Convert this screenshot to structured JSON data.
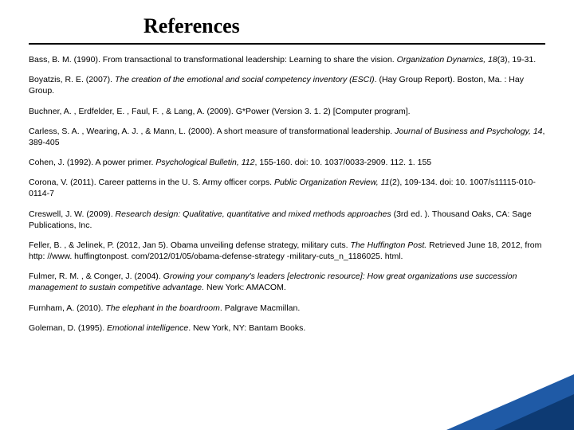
{
  "title": "References",
  "title_fontsize": 26,
  "title_font": "Times New Roman",
  "body_fontsize": 10.5,
  "colors": {
    "text": "#000000",
    "background": "#ffffff",
    "underline": "#000000",
    "corner_light": "#1f5aa6",
    "corner_dark": "#0d3a73"
  },
  "references": [
    {
      "pre": "Bass, B. M. (1990). From transactional to transformational leadership: Learning to share the vision. ",
      "ital": "Organization Dynamics, 18",
      "post": "(3), 19-31."
    },
    {
      "pre": "Boyatzis, R. E. (2007). ",
      "ital": "The creation of the emotional and social competency inventory (ESCI)",
      "post": ". (Hay Group Report). Boston, Ma. : Hay Group."
    },
    {
      "pre": "Buchner, A. , Erdfelder, E. , Faul, F. , & Lang, A. (2009). G*Power (Version 3. 1. 2) [Computer program].",
      "ital": "",
      "post": ""
    },
    {
      "pre": "Carless, S. A. , Wearing, A. J. , & Mann, L. (2000). A short measure of transformational leadership. ",
      "ital": "Journal of Business and Psychology, 14",
      "post": ", 389-405"
    },
    {
      "pre": "Cohen, J. (1992). A power primer. ",
      "ital": "Psychological Bulletin, 112",
      "post": ", 155-160. doi: 10. 1037/0033-2909. 112. 1. 155"
    },
    {
      "pre": "Corona, V. (2011). Career patterns in the U. S. Army officer corps. ",
      "ital": "Public Organization Review, 11",
      "post": "(2), 109-134. doi: 10. 1007/s11115-010-0114-7"
    },
    {
      "pre": "Creswell, J. W. (2009). ",
      "ital": "Research design: Qualitative, quantitative and mixed methods approaches ",
      "post": "(3rd ed. ). Thousand Oaks, CA: Sage Publications, Inc."
    },
    {
      "pre": "Feller, B. , & Jelinek, P. (2012, Jan 5). Obama unveiling defense strategy, military   cuts. ",
      "ital": "The Huffington Post. ",
      "post": "Retrieved June 18, 2012, from http: //www. huffingtonpost. com/2012/01/05/obama-defense-strategy -military-cuts_n_1186025. html."
    },
    {
      "pre": "Fulmer, R. M. , & Conger, J. (2004). ",
      "ital": "Growing your company's leaders [electronic resource]: How great organizations use succession management to sustain competitive advantage. ",
      "post": " New York: AMACOM."
    },
    {
      "pre": "Furnham, A. (2010). ",
      "ital": "The elephant in the boardroom",
      "post": ". Palgrave Macmillan."
    },
    {
      "pre": "Goleman, D. (1995). ",
      "ital": "Emotional intelligence",
      "post": ". New York, NY: Bantam Books."
    }
  ]
}
